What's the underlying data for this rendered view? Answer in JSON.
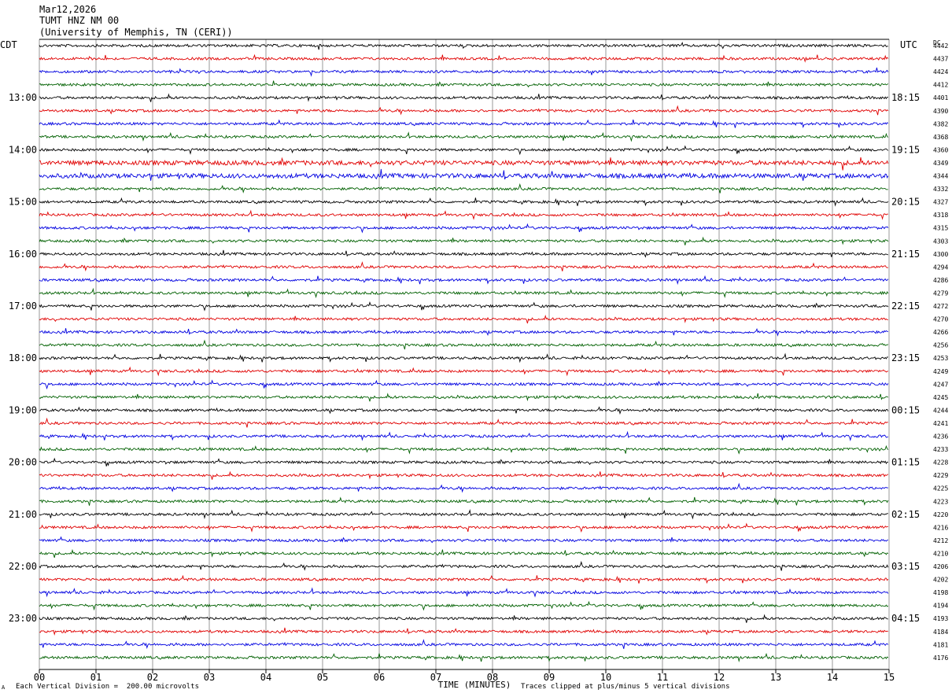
{
  "header": {
    "date": "Mar12,2026",
    "station": "TUMT HNZ NM 00",
    "institution": "(University of Memphis, TN (CERI))"
  },
  "left_tz": "CDT",
  "right_tz": "UTC",
  "dc_label": "DC",
  "footer": {
    "scale_note": "Each Vertical Division =  200.00 microvolts",
    "clip_note": "Traces clipped at plus/minus 5 vertical divisions",
    "corner_mark": "A"
  },
  "colors": {
    "trace_cycle": [
      "#000000",
      "#e00000",
      "#0000e0",
      "#006000"
    ],
    "grid": "#999999"
  },
  "chart_data": {
    "type": "line",
    "title": "TUMT HNZ NM 00",
    "xlabel": "TIME (MINUTES)",
    "xlim": [
      0,
      15
    ],
    "x_ticks": [
      "00",
      "01",
      "02",
      "03",
      "04",
      "05",
      "06",
      "07",
      "08",
      "09",
      "10",
      "11",
      "12",
      "13",
      "14",
      "15"
    ],
    "left_time_labels": [
      "13:00",
      "14:00",
      "15:00",
      "16:00",
      "17:00",
      "18:00",
      "19:00",
      "20:00",
      "21:00",
      "22:00",
      "23:00"
    ],
    "right_time_labels": [
      "18:15",
      "19:15",
      "20:15",
      "21:15",
      "22:15",
      "23:15",
      "00:15",
      "01:15",
      "02:15",
      "03:15",
      "04:15"
    ],
    "traces_per_hour": 4,
    "trace_minutes": 15,
    "trace_dc_offsets": [
      4442,
      4437,
      4424,
      4412,
      4401,
      4390,
      4382,
      4368,
      4360,
      4349,
      4344,
      4332,
      4327,
      4318,
      4315,
      4303,
      4300,
      4294,
      4286,
      4279,
      4272,
      4270,
      4266,
      4256,
      4253,
      4249,
      4247,
      4245,
      4244,
      4241,
      4236,
      4233,
      4228,
      4229,
      4225,
      4223,
      4220,
      4216,
      4212,
      4210,
      4206,
      4202,
      4198,
      4194,
      4193,
      4184,
      4181,
      4176
    ]
  }
}
